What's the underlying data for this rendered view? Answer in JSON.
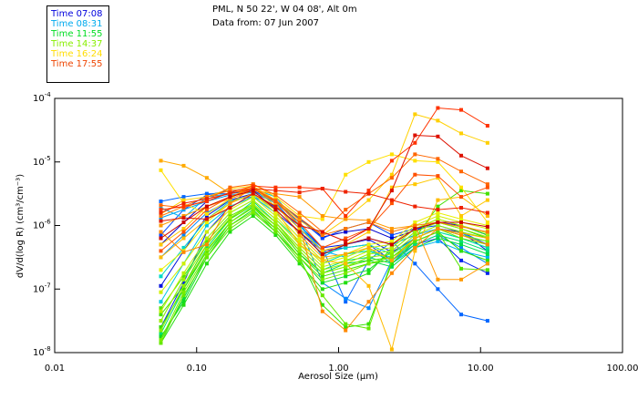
{
  "header": {
    "line1": "PML, N 50 22', W 04 08', Alt 0m",
    "line2": "Data from: 07 Jun 2007"
  },
  "legend": [
    {
      "label": "Time 07:08",
      "color": "#0000dd"
    },
    {
      "label": "Time 08:31",
      "color": "#00aaee"
    },
    {
      "label": "Time 11:55",
      "color": "#00dd22"
    },
    {
      "label": "Time 14:37",
      "color": "#88ee00"
    },
    {
      "label": "Time 16:24",
      "color": "#ffdd00"
    },
    {
      "label": "Time 17:55",
      "color": "#ee4400"
    }
  ],
  "chart_data": {
    "type": "line",
    "title": "PML, N 50 22', W 04 08', Alt 0m — Data from: 07 Jun 2007",
    "xlabel": "Aerosol Size (µm)",
    "ylabel": "dV/d(log R) (cm³/cm⁻³)",
    "xscale": "log",
    "yscale": "log",
    "xlim": [
      0.01,
      100
    ],
    "ylim": [
      1e-08,
      0.0001
    ],
    "xticks": [
      {
        "value": 0.01,
        "label": "0.01"
      },
      {
        "value": 0.1,
        "label": "0.10"
      },
      {
        "value": 1,
        "label": "1.00"
      },
      {
        "value": 10,
        "label": "10.00"
      },
      {
        "value": 100,
        "label": "100.00"
      }
    ],
    "yticks": [
      {
        "exp": -4,
        "base": "10",
        "sup": "-4"
      },
      {
        "exp": -5,
        "base": "10",
        "sup": "-5"
      },
      {
        "exp": -6,
        "base": "10",
        "sup": "-6"
      },
      {
        "exp": -7,
        "base": "10",
        "sup": "-7"
      },
      {
        "exp": -8,
        "base": "10",
        "sup": "-8"
      }
    ],
    "grid": false,
    "legend_position": "top-left, outside plot",
    "x": [
      0.056,
      0.081,
      0.118,
      0.172,
      0.25,
      0.36,
      0.53,
      0.77,
      1.12,
      1.63,
      2.37,
      3.45,
      5.0,
      7.3,
      11.2
    ],
    "series_log10": [
      {
        "name": "07:08 a",
        "color": "#0000cc",
        "log10_values": [
          -6.3,
          -5.95,
          -5.62,
          -5.48,
          -5.45,
          -5.62,
          -5.88,
          -6.18,
          -6.1,
          -6.05,
          -6.2,
          -6.08,
          -5.95,
          -6.0,
          -6.15
        ]
      },
      {
        "name": "07:08 b",
        "color": "#0010dd",
        "log10_values": [
          -6.95,
          -6.4,
          -5.85,
          -5.6,
          -5.5,
          -5.72,
          -6.0,
          -6.35,
          -6.3,
          -6.22,
          -6.42,
          -6.2,
          -6.05,
          -6.1,
          -6.4
        ]
      },
      {
        "name": "07:08 c",
        "color": "#0022ee",
        "log10_values": [
          -7.6,
          -6.9,
          -6.1,
          -5.7,
          -5.55,
          -5.8,
          -6.1,
          -6.4,
          -6.35,
          -6.3,
          -6.55,
          -6.3,
          -6.2,
          -6.55,
          -6.75
        ]
      },
      {
        "name": "07:30 a",
        "color": "#0044ff",
        "log10_values": [
          -6.15,
          -5.75,
          -5.52,
          -5.45,
          -5.42,
          -5.6,
          -5.9,
          -6.2,
          -6.05,
          -5.95,
          -6.15,
          -6.05,
          -6.0,
          -6.1,
          -6.3
        ]
      },
      {
        "name": "07:45 a",
        "color": "#0066ff",
        "log10_values": [
          -5.62,
          -5.55,
          -5.5,
          -5.5,
          -5.45,
          -5.65,
          -6.05,
          -6.35,
          -7.2,
          -6.55,
          -6.25,
          -6.6,
          -7.0,
          -7.4,
          -7.5
        ]
      },
      {
        "name": "08:00 a",
        "color": "#0088ff",
        "log10_values": [
          -6.5,
          -6.15,
          -5.8,
          -5.6,
          -5.55,
          -5.7,
          -6.0,
          -6.9,
          -7.15,
          -7.3,
          -6.55,
          -6.3,
          -6.15,
          -6.35,
          -6.6
        ]
      },
      {
        "name": "08:31 a",
        "color": "#00a0f0",
        "log10_values": [
          -5.88,
          -5.75,
          -5.62,
          -5.52,
          -5.48,
          -5.65,
          -5.95,
          -6.5,
          -6.3,
          -6.2,
          -6.3,
          -6.15,
          -6.05,
          -6.12,
          -6.3
        ]
      },
      {
        "name": "08:31 b",
        "color": "#00b4f0",
        "log10_values": [
          -5.72,
          -5.88,
          -5.55,
          -5.5,
          -5.42,
          -5.55,
          -6.0,
          -6.4,
          -6.5,
          -6.35,
          -6.6,
          -6.35,
          -6.25,
          -6.4,
          -6.5
        ]
      },
      {
        "name": "09:00 a",
        "color": "#00c8e0",
        "log10_values": [
          -7.2,
          -6.6,
          -6.0,
          -5.7,
          -5.55,
          -5.8,
          -6.2,
          -6.55,
          -6.45,
          -6.4,
          -6.5,
          -6.25,
          -6.1,
          -6.2,
          -6.35
        ]
      },
      {
        "name": "09:30 a",
        "color": "#00d8c8",
        "log10_values": [
          -6.8,
          -6.35,
          -5.9,
          -5.62,
          -5.52,
          -5.75,
          -6.1,
          -6.45,
          -6.35,
          -6.3,
          -6.45,
          -6.2,
          -6.05,
          -6.15,
          -6.25
        ]
      },
      {
        "name": "10:00 a",
        "color": "#00e0a0",
        "log10_values": [
          -7.5,
          -6.85,
          -6.2,
          -5.8,
          -5.6,
          -5.9,
          -6.25,
          -6.6,
          -6.45,
          -6.4,
          -6.55,
          -6.25,
          -6.1,
          -6.2,
          -6.35
        ]
      },
      {
        "name": "10:30 a",
        "color": "#00e070",
        "log10_values": [
          -7.7,
          -7.0,
          -6.35,
          -5.9,
          -5.62,
          -5.95,
          -6.35,
          -6.7,
          -6.55,
          -6.5,
          -6.6,
          -6.3,
          -6.15,
          -6.25,
          -6.4
        ]
      },
      {
        "name": "11:00 a",
        "color": "#00dd44",
        "log10_values": [
          -7.8,
          -7.15,
          -6.45,
          -5.95,
          -5.7,
          -6.0,
          -6.45,
          -6.75,
          -6.6,
          -6.55,
          -6.65,
          -6.35,
          -6.2,
          -6.3,
          -6.45
        ]
      },
      {
        "name": "11:55 a",
        "color": "#10dd20",
        "log10_values": [
          -7.75,
          -7.2,
          -6.5,
          -6.0,
          -5.75,
          -6.1,
          -6.5,
          -6.9,
          -6.8,
          -6.7,
          -6.4,
          -6.1,
          -5.95,
          -6.05,
          -6.2
        ]
      },
      {
        "name": "11:55 b",
        "color": "#22dd10",
        "log10_values": [
          -7.85,
          -7.25,
          -6.6,
          -6.1,
          -5.85,
          -6.15,
          -6.6,
          -7.0,
          -6.9,
          -6.75,
          -6.35,
          -6.05,
          -5.9,
          -6.0,
          -6.15
        ]
      },
      {
        "name": "12:30 a",
        "color": "#33e000",
        "log10_values": [
          -7.6,
          -7.0,
          -6.4,
          -5.95,
          -5.72,
          -6.05,
          -6.5,
          -7.25,
          -7.6,
          -7.55,
          -6.6,
          -6.25,
          -6.1,
          -6.4,
          -6.55
        ]
      },
      {
        "name": "13:00 a",
        "color": "#44e000",
        "log10_values": [
          -7.4,
          -6.95,
          -6.3,
          -5.9,
          -5.68,
          -6.0,
          -6.45,
          -6.8,
          -6.7,
          -6.6,
          -6.55,
          -6.2,
          -5.7,
          -5.45,
          -5.5
        ]
      },
      {
        "name": "13:30 a",
        "color": "#55e400",
        "log10_values": [
          -7.3,
          -6.8,
          -6.25,
          -5.85,
          -5.66,
          -5.95,
          -6.4,
          -6.75,
          -6.65,
          -6.55,
          -6.5,
          -6.25,
          -6.1,
          -6.68,
          -6.7
        ]
      },
      {
        "name": "14:00 a",
        "color": "#66e800",
        "log10_values": [
          -7.85,
          -7.1,
          -6.5,
          -6.05,
          -5.8,
          -6.1,
          -6.55,
          -7.1,
          -7.55,
          -7.62,
          -6.55,
          -6.2,
          -6.05,
          -6.2,
          -6.3
        ]
      },
      {
        "name": "14:37 a",
        "color": "#7aec00",
        "log10_values": [
          -7.8,
          -7.05,
          -6.45,
          -6.0,
          -5.78,
          -6.05,
          -6.5,
          -6.85,
          -6.75,
          -6.6,
          -6.5,
          -6.2,
          -6.05,
          -6.15,
          -6.25
        ]
      },
      {
        "name": "14:37 b",
        "color": "#8cee00",
        "log10_values": [
          -7.65,
          -6.95,
          -6.38,
          -5.95,
          -5.72,
          -6.0,
          -6.4,
          -6.75,
          -6.65,
          -6.5,
          -6.45,
          -6.15,
          -6.0,
          -6.1,
          -6.2
        ]
      },
      {
        "name": "15:00 a",
        "color": "#a0ee00",
        "log10_values": [
          -7.5,
          -6.85,
          -6.3,
          -5.88,
          -5.66,
          -5.95,
          -6.35,
          -6.7,
          -6.6,
          -6.45,
          -6.4,
          -6.1,
          -5.95,
          -6.05,
          -6.18
        ]
      },
      {
        "name": "15:20 a",
        "color": "#b8f000",
        "log10_values": [
          -7.35,
          -6.75,
          -6.2,
          -5.8,
          -5.6,
          -5.9,
          -6.3,
          -6.65,
          -6.55,
          -6.4,
          -6.35,
          -6.05,
          -5.9,
          -6.0,
          -6.12
        ]
      },
      {
        "name": "15:40 a",
        "color": "#d0f000",
        "log10_values": [
          -7.05,
          -6.6,
          -6.1,
          -5.75,
          -5.55,
          -5.85,
          -6.25,
          -6.6,
          -6.5,
          -6.35,
          -6.3,
          -6.0,
          -5.85,
          -5.95,
          -6.05
        ]
      },
      {
        "name": "16:00 a",
        "color": "#e8f000",
        "log10_values": [
          -6.7,
          -6.4,
          -5.95,
          -5.65,
          -5.5,
          -5.8,
          -6.2,
          -6.55,
          -6.45,
          -6.3,
          -6.25,
          -5.95,
          -5.8,
          -5.9,
          -6.0
        ]
      },
      {
        "name": "16:24 a",
        "color": "#ffe000",
        "log10_values": [
          -5.13,
          -5.65,
          -5.82,
          -5.58,
          -5.35,
          -5.55,
          -5.85,
          -5.9,
          -5.2,
          -5.0,
          -4.88,
          -4.98,
          -5.0,
          -5.4,
          -5.95
        ]
      },
      {
        "name": "16:24 b",
        "color": "#ffd000",
        "log10_values": [
          -5.82,
          -5.6,
          -5.55,
          -5.42,
          -5.38,
          -5.6,
          -5.92,
          -6.15,
          -5.9,
          -5.6,
          -5.2,
          -4.25,
          -4.35,
          -4.55,
          -4.7
        ]
      },
      {
        "name": "16:24 c",
        "color": "#ffc800",
        "log10_values": [
          -6.3,
          -6.05,
          -5.7,
          -5.55,
          -5.4,
          -5.7,
          -6.05,
          -6.4,
          -6.3,
          -6.1,
          -5.4,
          -5.35,
          -5.25,
          -5.85,
          -5.6
        ]
      },
      {
        "name": "16:40 a",
        "color": "#ffbb00",
        "log10_values": [
          -6.5,
          -6.2,
          -5.9,
          -5.65,
          -5.5,
          -5.75,
          -6.3,
          -6.55,
          -6.6,
          -6.95,
          -7.95,
          -6.4,
          -5.6,
          -5.55,
          -5.85
        ]
      },
      {
        "name": "16:50 a",
        "color": "#ffaa00",
        "log10_values": [
          -4.98,
          -5.06,
          -5.25,
          -5.5,
          -5.4,
          -5.65,
          -6.15,
          -6.5,
          -6.45,
          -6.35,
          -6.55,
          -6.2,
          -6.05,
          -6.12,
          -6.2
        ]
      },
      {
        "name": "17:00 a",
        "color": "#ff9900",
        "log10_values": [
          -6.0,
          -5.85,
          -5.7,
          -5.58,
          -5.45,
          -5.5,
          -5.55,
          -5.85,
          -5.9,
          -5.92,
          -6.05,
          -6.0,
          -6.85,
          -6.85,
          -6.6
        ]
      },
      {
        "name": "17:10 a",
        "color": "#ff8800",
        "log10_values": [
          -6.1,
          -6.42,
          -6.3,
          -5.65,
          -5.4,
          -5.62,
          -6.0,
          -7.35,
          -7.65,
          -7.2,
          -6.75,
          -6.35,
          -6.05,
          -6.15,
          -6.3
        ]
      },
      {
        "name": "17:20 a",
        "color": "#ff7700",
        "log10_values": [
          -5.85,
          -5.7,
          -5.55,
          -5.45,
          -5.42,
          -5.6,
          -5.88,
          -6.15,
          -6.05,
          -5.95,
          -6.1,
          -6.0,
          -5.95,
          -6.02,
          -6.1
        ]
      },
      {
        "name": "17:30 a",
        "color": "#ff6600",
        "log10_values": [
          -5.68,
          -5.72,
          -5.6,
          -5.4,
          -5.35,
          -5.52,
          -5.8,
          -6.1,
          -5.75,
          -5.5,
          -5.25,
          -4.88,
          -4.95,
          -5.15,
          -5.35
        ]
      },
      {
        "name": "17:40 a",
        "color": "#ff5000",
        "log10_values": [
          -6.4,
          -6.1,
          -5.75,
          -5.55,
          -5.42,
          -5.62,
          -5.95,
          -6.35,
          -6.2,
          -6.05,
          -5.65,
          -5.2,
          -5.22,
          -5.55,
          -5.4
        ]
      },
      {
        "name": "17:55 a",
        "color": "#ff3300",
        "log10_values": [
          -5.75,
          -5.7,
          -5.62,
          -5.48,
          -5.38,
          -5.4,
          -5.4,
          -5.42,
          -5.85,
          -5.45,
          -4.98,
          -4.7,
          -4.15,
          -4.18,
          -4.43
        ]
      },
      {
        "name": "17:55 b",
        "color": "#ee2200",
        "log10_values": [
          -5.8,
          -5.65,
          -5.58,
          -5.5,
          -5.42,
          -5.45,
          -5.48,
          -5.42,
          -5.47,
          -5.5,
          -5.6,
          -5.7,
          -5.75,
          -5.72,
          -5.8
        ]
      },
      {
        "name": "17:55 c",
        "color": "#dd1100",
        "log10_values": [
          -5.93,
          -5.88,
          -5.9,
          -5.72,
          -5.5,
          -5.7,
          -6.0,
          -6.1,
          -6.25,
          -6.05,
          -5.45,
          -4.58,
          -4.6,
          -4.9,
          -5.1
        ]
      },
      {
        "name": "17:55 d",
        "color": "#cc0000",
        "log10_values": [
          -6.2,
          -5.95,
          -5.7,
          -5.55,
          -5.45,
          -5.75,
          -6.1,
          -6.45,
          -6.3,
          -6.2,
          -6.3,
          -6.05,
          -5.95,
          -5.95,
          -6.02
        ]
      }
    ]
  }
}
